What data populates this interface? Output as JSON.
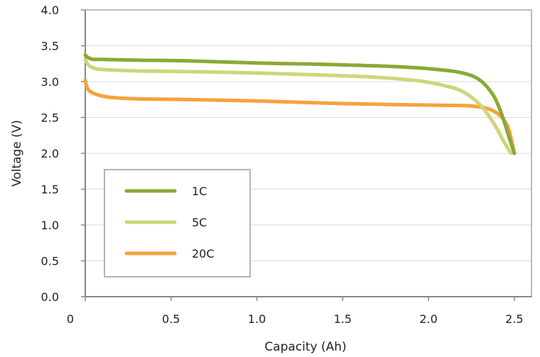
{
  "chart_data": {
    "type": "line",
    "xlabel": "Capacity (Ah)",
    "ylabel": "Voltage (V)",
    "xlim": [
      0,
      2.6
    ],
    "ylim": [
      0,
      4.0
    ],
    "grid": "horizontal",
    "legend_position": "bottom-left",
    "x_ticks": [
      {
        "value": 0,
        "label": "0"
      },
      {
        "value": 0.5,
        "label": "0.5"
      },
      {
        "value": 1.0,
        "label": "1.0"
      },
      {
        "value": 1.5,
        "label": "1.5"
      },
      {
        "value": 2.0,
        "label": "2.0"
      },
      {
        "value": 2.5,
        "label": "2.5"
      }
    ],
    "y_ticks": [
      {
        "value": 0,
        "label": "0.0"
      },
      {
        "value": 0.5,
        "label": "0.5"
      },
      {
        "value": 1.0,
        "label": "1.0"
      },
      {
        "value": 1.5,
        "label": "1.5"
      },
      {
        "value": 2.0,
        "label": "2.0"
      },
      {
        "value": 2.5,
        "label": "2.5"
      },
      {
        "value": 3.0,
        "label": "3.0"
      },
      {
        "value": 3.5,
        "label": "3.5"
      },
      {
        "value": 4.0,
        "label": "4.0"
      }
    ],
    "series": [
      {
        "name": "1C",
        "color": "#8aa936",
        "points": [
          [
            0.0,
            3.37
          ],
          [
            0.02,
            3.33
          ],
          [
            0.05,
            3.31
          ],
          [
            0.1,
            3.31
          ],
          [
            0.3,
            3.3
          ],
          [
            0.6,
            3.29
          ],
          [
            1.0,
            3.26
          ],
          [
            1.4,
            3.24
          ],
          [
            1.8,
            3.21
          ],
          [
            2.05,
            3.17
          ],
          [
            2.2,
            3.12
          ],
          [
            2.3,
            3.02
          ],
          [
            2.38,
            2.8
          ],
          [
            2.43,
            2.52
          ],
          [
            2.47,
            2.22
          ],
          [
            2.5,
            2.0
          ]
        ]
      },
      {
        "name": "5C",
        "color": "#cdd67a",
        "points": [
          [
            0.0,
            3.3
          ],
          [
            0.02,
            3.23
          ],
          [
            0.05,
            3.19
          ],
          [
            0.1,
            3.17
          ],
          [
            0.3,
            3.15
          ],
          [
            0.6,
            3.14
          ],
          [
            1.0,
            3.12
          ],
          [
            1.4,
            3.09
          ],
          [
            1.7,
            3.06
          ],
          [
            1.95,
            3.01
          ],
          [
            2.1,
            2.94
          ],
          [
            2.2,
            2.86
          ],
          [
            2.3,
            2.68
          ],
          [
            2.38,
            2.42
          ],
          [
            2.44,
            2.16
          ],
          [
            2.48,
            2.0
          ]
        ]
      },
      {
        "name": "20C",
        "color": "#f5a33a",
        "points": [
          [
            0.0,
            3.02
          ],
          [
            0.01,
            2.92
          ],
          [
            0.03,
            2.86
          ],
          [
            0.08,
            2.81
          ],
          [
            0.15,
            2.78
          ],
          [
            0.3,
            2.76
          ],
          [
            0.6,
            2.75
          ],
          [
            1.0,
            2.73
          ],
          [
            1.4,
            2.7
          ],
          [
            1.8,
            2.68
          ],
          [
            2.1,
            2.67
          ],
          [
            2.25,
            2.66
          ],
          [
            2.35,
            2.62
          ],
          [
            2.42,
            2.52
          ],
          [
            2.46,
            2.38
          ],
          [
            2.48,
            2.22
          ],
          [
            2.5,
            2.0
          ]
        ]
      }
    ]
  }
}
